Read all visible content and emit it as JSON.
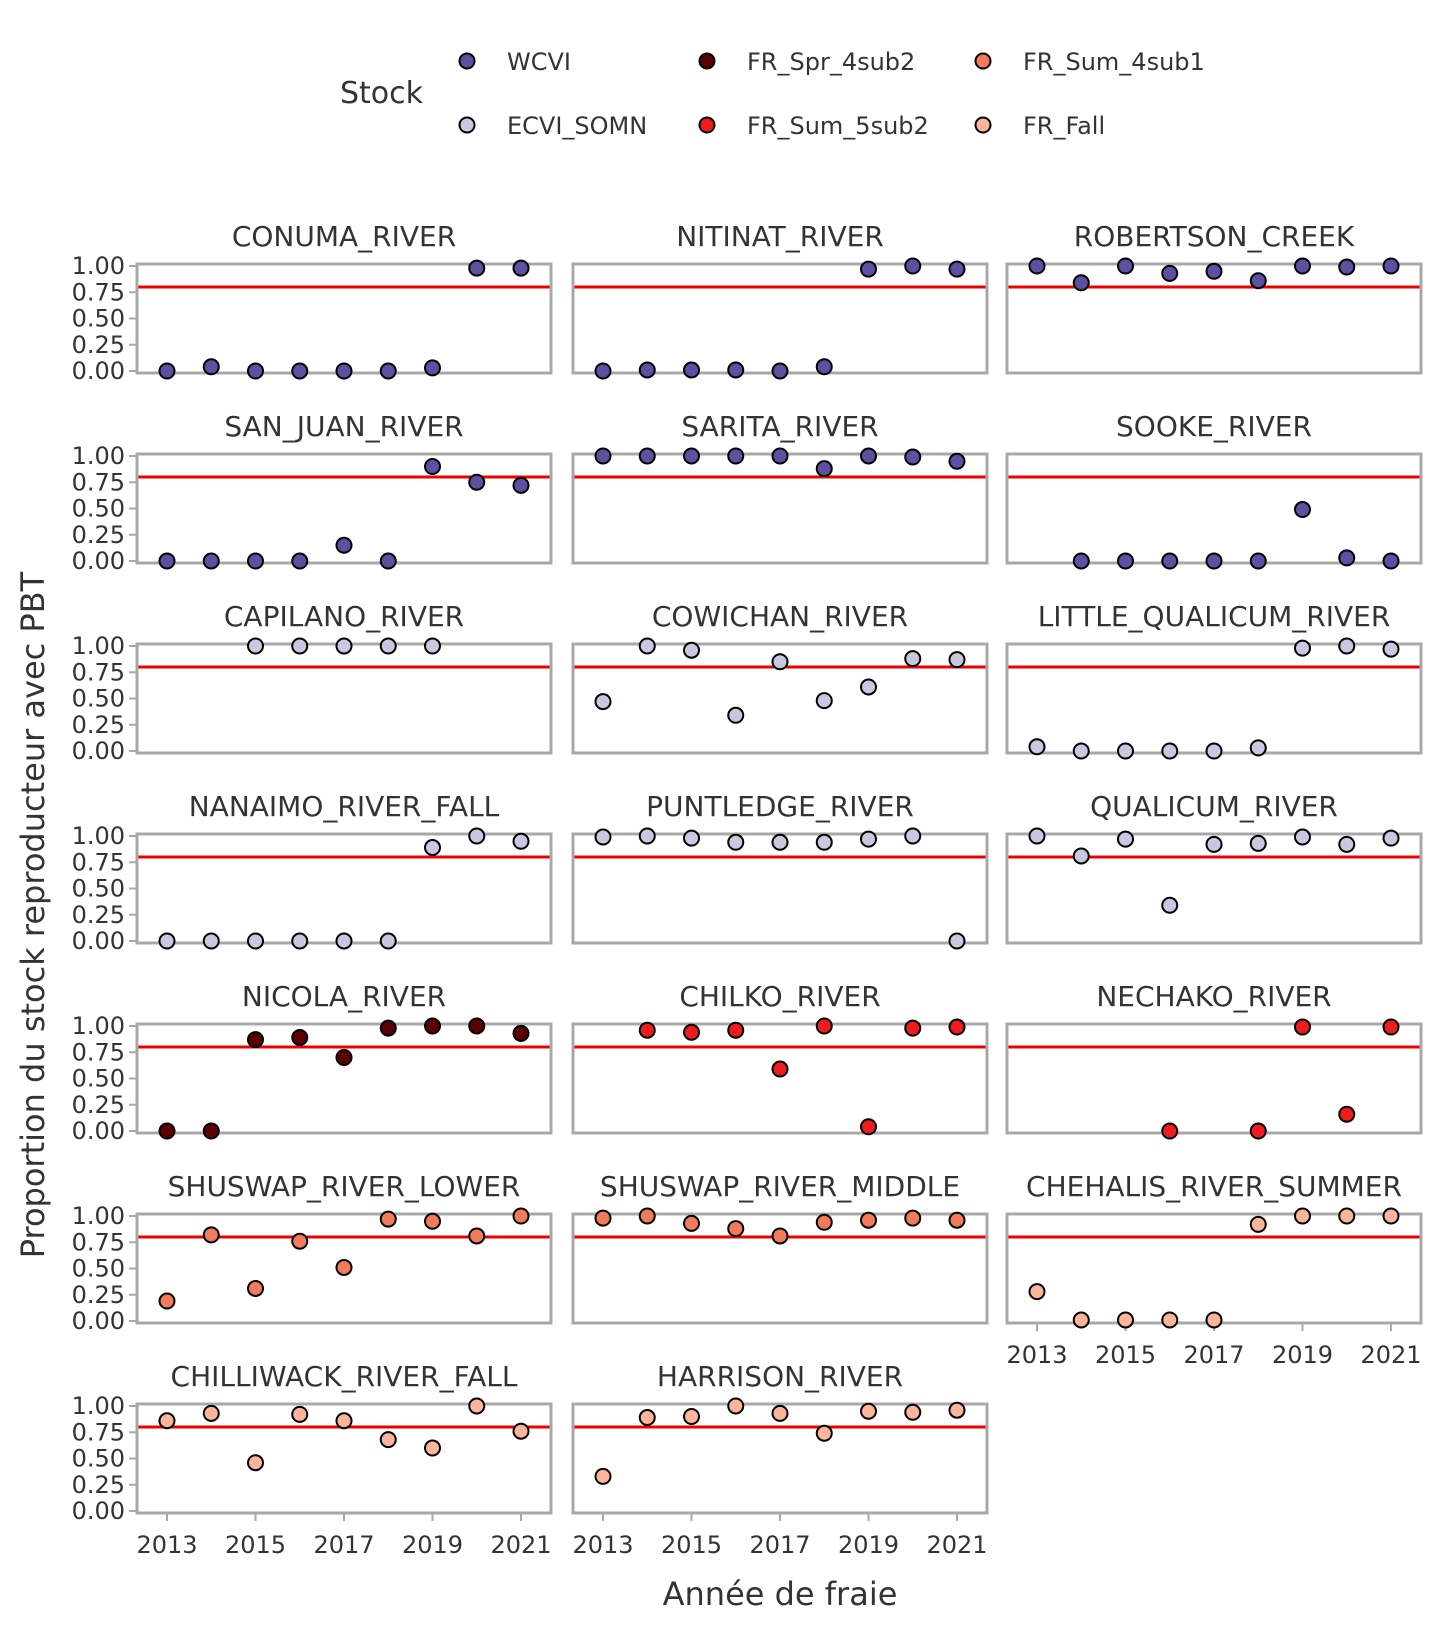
{
  "chart_data": {
    "type": "scatter",
    "xlabel": "Année de fraie",
    "ylabel": "Proportion du stock reproducteur avec PBT",
    "ylim": [
      0,
      1
    ],
    "xlim": [
      2013,
      2021
    ],
    "y_ticks": [
      "0.00",
      "0.25",
      "0.50",
      "0.75",
      "1.00"
    ],
    "x_ticks": [
      "2013",
      "2015",
      "2017",
      "2019",
      "2021"
    ],
    "reference_line": {
      "y": 0.8,
      "color": "#ee0000"
    },
    "legend": {
      "title": "Stock",
      "position": "top",
      "entries": [
        {
          "name": "WCVI",
          "color": "#5e4fa2"
        },
        {
          "name": "ECVI_SOMN",
          "color": "#c8c8e0"
        },
        {
          "name": "FR_Spr_4sub2",
          "color": "#5a0000"
        },
        {
          "name": "FR_Sum_5sub2",
          "color": "#ee1c1c"
        },
        {
          "name": "FR_Sum_4sub1",
          "color": "#f47a5c"
        },
        {
          "name": "FR_Fall",
          "color": "#fcb49a"
        }
      ]
    },
    "panels": [
      {
        "title": "CONUMA_RIVER",
        "stock": "WCVI",
        "points": [
          [
            2013,
            0.0
          ],
          [
            2014,
            0.04
          ],
          [
            2015,
            0.0
          ],
          [
            2016,
            0.0
          ],
          [
            2017,
            0.0
          ],
          [
            2018,
            0.0
          ],
          [
            2019,
            0.03
          ],
          [
            2020,
            0.98
          ],
          [
            2021,
            0.98
          ]
        ]
      },
      {
        "title": "NITINAT_RIVER",
        "stock": "WCVI",
        "points": [
          [
            2013,
            0.0
          ],
          [
            2014,
            0.01
          ],
          [
            2015,
            0.01
          ],
          [
            2016,
            0.01
          ],
          [
            2017,
            0.0
          ],
          [
            2018,
            0.04
          ],
          [
            2019,
            0.97
          ],
          [
            2020,
            1.0
          ],
          [
            2021,
            0.97
          ]
        ]
      },
      {
        "title": "ROBERTSON_CREEK",
        "stock": "WCVI",
        "points": [
          [
            2013,
            1.0
          ],
          [
            2014,
            0.84
          ],
          [
            2015,
            1.0
          ],
          [
            2016,
            0.93
          ],
          [
            2017,
            0.95
          ],
          [
            2018,
            0.86
          ],
          [
            2019,
            1.0
          ],
          [
            2020,
            0.99
          ],
          [
            2021,
            1.0
          ]
        ]
      },
      {
        "title": "SAN_JUAN_RIVER",
        "stock": "WCVI",
        "points": [
          [
            2013,
            0.0
          ],
          [
            2014,
            0.0
          ],
          [
            2015,
            0.0
          ],
          [
            2016,
            0.0
          ],
          [
            2017,
            0.15
          ],
          [
            2018,
            0.0
          ],
          [
            2019,
            0.9
          ],
          [
            2020,
            0.75
          ],
          [
            2021,
            0.72
          ]
        ]
      },
      {
        "title": "SARITA_RIVER",
        "stock": "WCVI",
        "points": [
          [
            2013,
            1.0
          ],
          [
            2014,
            1.0
          ],
          [
            2015,
            1.0
          ],
          [
            2016,
            1.0
          ],
          [
            2017,
            1.0
          ],
          [
            2018,
            0.88
          ],
          [
            2019,
            1.0
          ],
          [
            2020,
            0.99
          ],
          [
            2021,
            0.95
          ]
        ]
      },
      {
        "title": "SOOKE_RIVER",
        "stock": "WCVI",
        "points": [
          [
            2014,
            0.0
          ],
          [
            2015,
            0.0
          ],
          [
            2016,
            0.0
          ],
          [
            2017,
            0.0
          ],
          [
            2018,
            0.0
          ],
          [
            2019,
            0.49
          ],
          [
            2020,
            0.03
          ],
          [
            2021,
            0.0
          ]
        ]
      },
      {
        "title": "CAPILANO_RIVER",
        "stock": "ECVI_SOMN",
        "points": [
          [
            2015,
            1.0
          ],
          [
            2016,
            1.0
          ],
          [
            2017,
            1.0
          ],
          [
            2018,
            1.0
          ],
          [
            2019,
            1.0
          ]
        ]
      },
      {
        "title": "COWICHAN_RIVER",
        "stock": "ECVI_SOMN",
        "points": [
          [
            2013,
            0.47
          ],
          [
            2014,
            1.0
          ],
          [
            2015,
            0.96
          ],
          [
            2016,
            0.34
          ],
          [
            2017,
            0.85
          ],
          [
            2018,
            0.48
          ],
          [
            2019,
            0.61
          ],
          [
            2020,
            0.88
          ],
          [
            2021,
            0.87
          ]
        ]
      },
      {
        "title": "LITTLE_QUALICUM_RIVER",
        "stock": "ECVI_SOMN",
        "points": [
          [
            2013,
            0.04
          ],
          [
            2014,
            0.0
          ],
          [
            2015,
            0.0
          ],
          [
            2016,
            0.0
          ],
          [
            2017,
            0.0
          ],
          [
            2018,
            0.03
          ],
          [
            2019,
            0.98
          ],
          [
            2020,
            1.0
          ],
          [
            2021,
            0.97
          ]
        ]
      },
      {
        "title": "NANAIMO_RIVER_FALL",
        "stock": "ECVI_SOMN",
        "points": [
          [
            2013,
            0.0
          ],
          [
            2014,
            0.0
          ],
          [
            2015,
            0.0
          ],
          [
            2016,
            0.0
          ],
          [
            2017,
            0.0
          ],
          [
            2018,
            0.0
          ],
          [
            2019,
            0.89
          ],
          [
            2020,
            1.0
          ],
          [
            2021,
            0.95
          ]
        ]
      },
      {
        "title": "PUNTLEDGE_RIVER",
        "stock": "ECVI_SOMN",
        "points": [
          [
            2013,
            0.99
          ],
          [
            2014,
            1.0
          ],
          [
            2015,
            0.98
          ],
          [
            2016,
            0.94
          ],
          [
            2017,
            0.94
          ],
          [
            2018,
            0.94
          ],
          [
            2019,
            0.97
          ],
          [
            2020,
            1.0
          ],
          [
            2021,
            0.0
          ]
        ]
      },
      {
        "title": "QUALICUM_RIVER",
        "stock": "ECVI_SOMN",
        "points": [
          [
            2013,
            1.0
          ],
          [
            2014,
            0.81
          ],
          [
            2015,
            0.97
          ],
          [
            2016,
            0.34
          ],
          [
            2017,
            0.92
          ],
          [
            2018,
            0.93
          ],
          [
            2019,
            0.99
          ],
          [
            2020,
            0.92
          ],
          [
            2021,
            0.98
          ]
        ]
      },
      {
        "title": "NICOLA_RIVER",
        "stock": "FR_Spr_4sub2",
        "points": [
          [
            2013,
            0.0
          ],
          [
            2014,
            0.0
          ],
          [
            2015,
            0.87
          ],
          [
            2016,
            0.89
          ],
          [
            2017,
            0.7
          ],
          [
            2018,
            0.98
          ],
          [
            2019,
            1.0
          ],
          [
            2020,
            1.0
          ],
          [
            2021,
            0.93
          ]
        ]
      },
      {
        "title": "CHILKO_RIVER",
        "stock": "FR_Sum_5sub2",
        "points": [
          [
            2014,
            0.96
          ],
          [
            2015,
            0.94
          ],
          [
            2016,
            0.96
          ],
          [
            2017,
            0.59
          ],
          [
            2018,
            1.0
          ],
          [
            2019,
            0.04
          ],
          [
            2020,
            0.98
          ],
          [
            2021,
            0.99
          ]
        ]
      },
      {
        "title": "NECHAKO_RIVER",
        "stock": "FR_Sum_5sub2",
        "points": [
          [
            2016,
            0.0
          ],
          [
            2018,
            0.0
          ],
          [
            2019,
            0.99
          ],
          [
            2020,
            0.16
          ],
          [
            2021,
            0.99
          ]
        ]
      },
      {
        "title": "SHUSWAP_RIVER_LOWER",
        "stock": "FR_Sum_4sub1",
        "points": [
          [
            2013,
            0.19
          ],
          [
            2014,
            0.82
          ],
          [
            2015,
            0.31
          ],
          [
            2016,
            0.76
          ],
          [
            2017,
            0.51
          ],
          [
            2018,
            0.97
          ],
          [
            2019,
            0.95
          ],
          [
            2020,
            0.81
          ],
          [
            2021,
            1.0
          ]
        ]
      },
      {
        "title": "SHUSWAP_RIVER_MIDDLE",
        "stock": "FR_Sum_4sub1",
        "points": [
          [
            2013,
            0.98
          ],
          [
            2014,
            1.0
          ],
          [
            2015,
            0.93
          ],
          [
            2016,
            0.88
          ],
          [
            2017,
            0.81
          ],
          [
            2018,
            0.94
          ],
          [
            2019,
            0.96
          ],
          [
            2020,
            0.98
          ],
          [
            2021,
            0.96
          ]
        ]
      },
      {
        "title": "CHEHALIS_RIVER_SUMMER",
        "stock": "FR_Fall",
        "points": [
          [
            2013,
            0.28
          ],
          [
            2014,
            0.01
          ],
          [
            2015,
            0.01
          ],
          [
            2016,
            0.01
          ],
          [
            2017,
            0.01
          ],
          [
            2018,
            0.92
          ],
          [
            2019,
            1.0
          ],
          [
            2020,
            1.0
          ],
          [
            2021,
            1.0
          ]
        ]
      },
      {
        "title": "CHILLIWACK_RIVER_FALL",
        "stock": "FR_Fall",
        "points": [
          [
            2013,
            0.86
          ],
          [
            2014,
            0.93
          ],
          [
            2015,
            0.46
          ],
          [
            2016,
            0.92
          ],
          [
            2017,
            0.86
          ],
          [
            2018,
            0.68
          ],
          [
            2019,
            0.6
          ],
          [
            2020,
            1.0
          ],
          [
            2021,
            0.76
          ]
        ]
      },
      {
        "title": "HARRISON_RIVER",
        "stock": "FR_Fall",
        "points": [
          [
            2013,
            0.33
          ],
          [
            2014,
            0.89
          ],
          [
            2015,
            0.9
          ],
          [
            2016,
            1.0
          ],
          [
            2017,
            0.93
          ],
          [
            2018,
            0.74
          ],
          [
            2019,
            0.95
          ],
          [
            2020,
            0.94
          ],
          [
            2021,
            0.96
          ]
        ]
      }
    ]
  }
}
